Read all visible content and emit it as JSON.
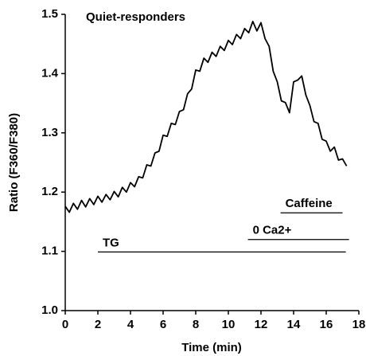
{
  "chart_data": {
    "type": "line",
    "title": "Quiet-responders",
    "xlabel": "Time (min)",
    "ylabel": "Ratio (F360/F380)",
    "x": [
      0,
      0.25,
      0.5,
      0.75,
      1,
      1.25,
      1.5,
      1.75,
      2,
      2.25,
      2.5,
      2.75,
      3,
      3.25,
      3.5,
      3.75,
      4,
      4.25,
      4.5,
      4.75,
      5,
      5.25,
      5.5,
      5.75,
      6,
      6.25,
      6.5,
      6.75,
      7,
      7.25,
      7.5,
      7.75,
      8,
      8.25,
      8.5,
      8.75,
      9,
      9.25,
      9.5,
      9.75,
      10,
      10.25,
      10.5,
      10.75,
      11,
      11.25,
      11.5,
      11.75,
      12,
      12.25,
      12.5,
      12.75,
      13,
      13.25,
      13.5,
      13.75,
      14,
      14.25,
      14.5,
      14.75,
      15,
      15.25,
      15.5,
      15.75,
      16,
      16.25,
      16.5,
      16.75,
      17,
      17.25
    ],
    "series": [
      {
        "color": "#000000",
        "values": [
          1.176,
          1.166,
          1.181,
          1.171,
          1.186,
          1.175,
          1.189,
          1.179,
          1.193,
          1.183,
          1.196,
          1.187,
          1.201,
          1.192,
          1.208,
          1.2,
          1.216,
          1.209,
          1.226,
          1.224,
          1.246,
          1.244,
          1.266,
          1.269,
          1.296,
          1.294,
          1.316,
          1.314,
          1.336,
          1.339,
          1.366,
          1.374,
          1.406,
          1.404,
          1.426,
          1.419,
          1.436,
          1.429,
          1.446,
          1.439,
          1.456,
          1.449,
          1.466,
          1.459,
          1.476,
          1.469,
          1.488,
          1.472,
          1.486,
          1.459,
          1.446,
          1.404,
          1.386,
          1.354,
          1.351,
          1.334,
          1.386,
          1.389,
          1.396,
          1.364,
          1.346,
          1.319,
          1.316,
          1.289,
          1.286,
          1.269,
          1.276,
          1.254,
          1.256,
          1.244
        ]
      }
    ],
    "xlim": [
      0,
      18
    ],
    "xticks": [
      0,
      2,
      4,
      6,
      8,
      10,
      12,
      14,
      16,
      18
    ],
    "ylim": [
      1,
      1.5
    ],
    "yticks": [
      {
        "value": 1,
        "label": "1.0"
      },
      1.1,
      1.2,
      1.3,
      1.4,
      1.5
    ],
    "annotations": [
      {
        "text": "TG",
        "x": [
          2,
          17.2
        ],
        "y": 1.099
      },
      {
        "text": "0 Ca2+",
        "x": [
          11.2,
          17.4
        ],
        "y": 1.12
      },
      {
        "text": "Caffeine",
        "x": [
          13.2,
          17
        ],
        "y": 1.165
      }
    ]
  }
}
